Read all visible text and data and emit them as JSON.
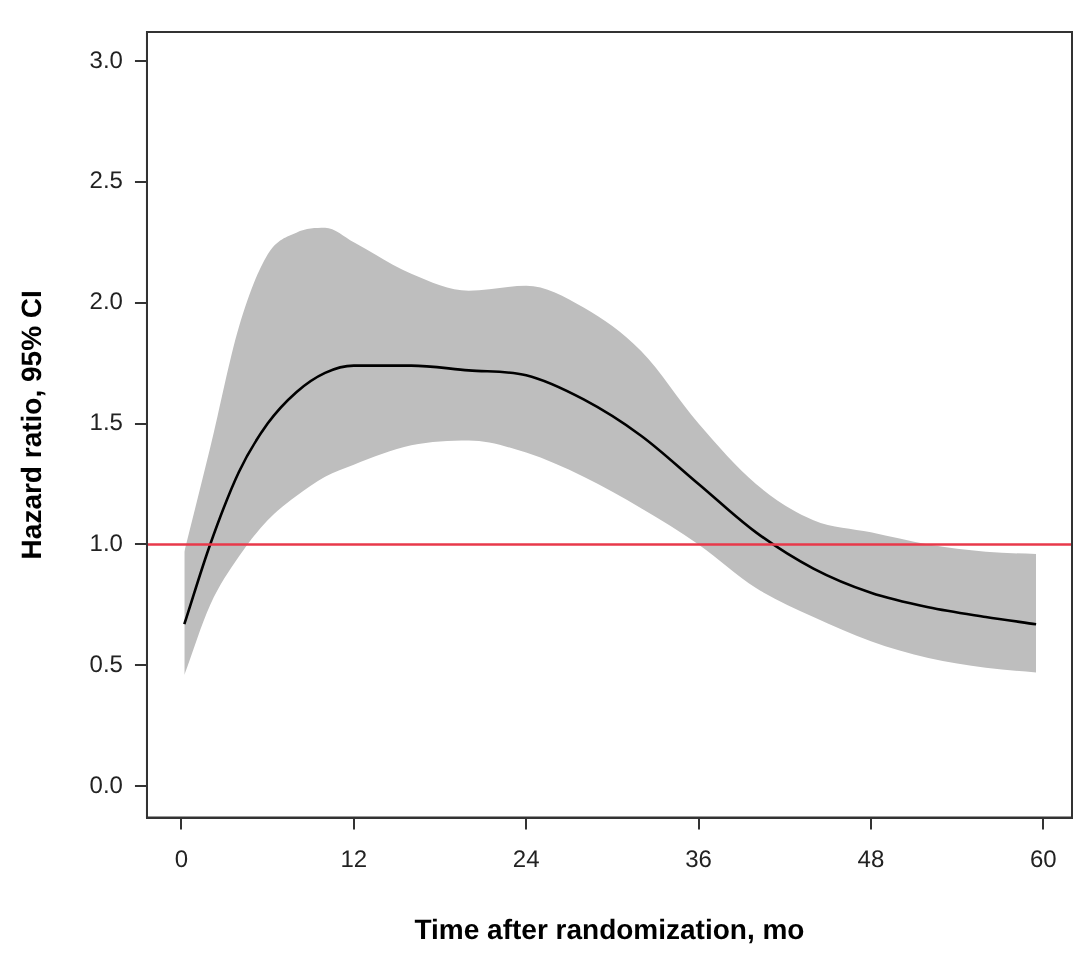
{
  "chart_data": {
    "type": "line",
    "xlabel": "Time after randomization, mo",
    "ylabel": "Hazard ratio, 95% CI",
    "x": [
      0.2,
      2,
      4,
      6,
      8,
      10,
      12,
      16,
      20,
      24,
      28,
      32,
      36,
      40,
      44,
      48,
      52,
      56,
      59.5
    ],
    "series": [
      {
        "color": "#000000",
        "values": [
          0.67,
          1.0,
          1.3,
          1.5,
          1.63,
          1.71,
          1.74,
          1.74,
          1.72,
          1.7,
          1.6,
          1.45,
          1.25,
          1.05,
          0.9,
          0.8,
          0.74,
          0.7,
          0.67
        ],
        "lower": [
          0.46,
          0.75,
          0.95,
          1.1,
          1.2,
          1.28,
          1.33,
          1.41,
          1.43,
          1.38,
          1.28,
          1.15,
          1.0,
          0.82,
          0.7,
          0.6,
          0.53,
          0.49,
          0.47
        ],
        "upper": [
          0.97,
          1.4,
          1.9,
          2.2,
          2.29,
          2.31,
          2.25,
          2.12,
          2.05,
          2.07,
          1.98,
          1.8,
          1.5,
          1.25,
          1.1,
          1.05,
          1.0,
          0.97,
          0.96
        ]
      }
    ],
    "xlim": [
      -2.4,
      62
    ],
    "ylim": [
      -0.13,
      3.12
    ],
    "xticks": [
      0,
      12,
      24,
      36,
      48,
      60
    ],
    "yticks": [
      {
        "value": 0,
        "label": "0.0"
      },
      0.5,
      {
        "value": 1,
        "label": "1.0"
      },
      1.5,
      {
        "value": 2,
        "label": "2.0"
      },
      2.5,
      {
        "value": 3,
        "label": "3.0"
      }
    ],
    "ref_lines": [
      {
        "axis": "y",
        "value": 1,
        "color": "#e8394a"
      }
    ],
    "grid": false,
    "legend": false,
    "marker": "none",
    "line_style": "solid"
  }
}
